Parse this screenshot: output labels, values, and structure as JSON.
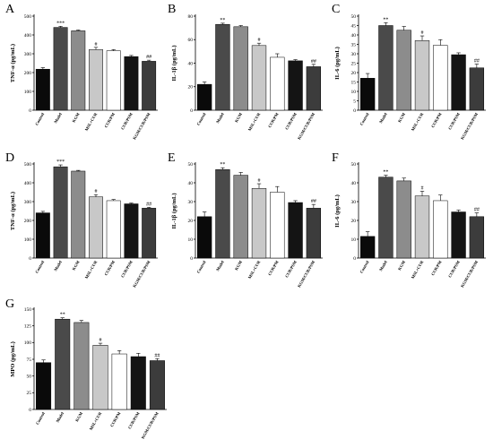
{
  "colors": [
    "#0a0a0a",
    "#4a4a4a",
    "#8c8c8c",
    "#c8c8c8",
    "#ffffff",
    "#141414",
    "#3c3c3c"
  ],
  "chart_data": [
    {
      "type": "bar",
      "panel": "A",
      "ylabel": "TNF-α (pg/mL)",
      "ylim": [
        0,
        500
      ],
      "yticks": [
        0,
        100,
        200,
        300,
        400,
        500
      ],
      "categories": [
        "Control",
        "Model",
        "KGM",
        "MSL+CUR",
        "CUR/PM",
        "CUR/PSM",
        "KGM/CUR/PSM"
      ],
      "values": [
        218,
        440,
        422,
        322,
        316,
        285,
        260
      ],
      "errors": [
        8,
        6,
        4,
        12,
        6,
        6,
        6
      ],
      "annotations": [
        "",
        "***",
        "",
        "#",
        "",
        "",
        "##"
      ]
    },
    {
      "type": "bar",
      "panel": "B",
      "ylabel": "IL-1β (pg/mL)",
      "ylim": [
        0,
        80
      ],
      "yticks": [
        0,
        20,
        40,
        60,
        80
      ],
      "categories": [
        "Control",
        "Model",
        "KGM",
        "MSL+CUR",
        "CUR/PM",
        "CUR/PSM",
        "KGM/CUR/PSM"
      ],
      "values": [
        22,
        73,
        71,
        55,
        45,
        42,
        37
      ],
      "errors": [
        2,
        1,
        1,
        2,
        3,
        1,
        2
      ],
      "annotations": [
        "",
        "**",
        "",
        "#",
        "",
        "",
        "##"
      ]
    },
    {
      "type": "bar",
      "panel": "C",
      "ylabel": "IL-6 (pg/mL)",
      "ylim": [
        0,
        50
      ],
      "yticks": [
        0,
        5,
        10,
        15,
        20,
        25,
        30,
        35,
        40,
        45,
        50
      ],
      "categories": [
        "Control",
        "Model",
        "KGM",
        "MSL+CUR",
        "CUR/PM",
        "CUR/PSM",
        "KGM/CUR/PSM"
      ],
      "values": [
        17,
        45,
        42.5,
        37,
        34.5,
        29.5,
        22.5
      ],
      "errors": [
        2.5,
        1.5,
        2,
        2.5,
        3,
        1,
        2
      ],
      "annotations": [
        "",
        "**",
        "",
        "#",
        "",
        "",
        "##"
      ]
    },
    {
      "type": "bar",
      "panel": "D",
      "ylabel": "TNF-α (pg/mL)",
      "ylim": [
        0,
        500
      ],
      "yticks": [
        0,
        100,
        200,
        300,
        400,
        500
      ],
      "categories": [
        "Control",
        "Model",
        "KGM",
        "MSL+CUR",
        "CUR/PM",
        "CUR/PSM",
        "KGM/CUR/PSM"
      ],
      "values": [
        240,
        485,
        462,
        325,
        305,
        288,
        265
      ],
      "errors": [
        8,
        10,
        4,
        12,
        6,
        4,
        5
      ],
      "annotations": [
        "",
        "***",
        "",
        "#",
        "",
        "",
        "##"
      ]
    },
    {
      "type": "bar",
      "panel": "E",
      "ylabel": "IL-1β (pg/mL)",
      "ylim": [
        0,
        50
      ],
      "yticks": [
        0,
        10,
        20,
        30,
        40,
        50
      ],
      "categories": [
        "Control",
        "Model",
        "KGM",
        "MSL+CUR",
        "CUR/PM",
        "CUR/PSM",
        "KGM/CUR/PSM"
      ],
      "values": [
        22,
        47,
        44,
        37,
        35,
        29.5,
        26.5
      ],
      "errors": [
        2.5,
        1,
        1.5,
        2.5,
        3,
        1,
        2
      ],
      "annotations": [
        "",
        "**",
        "",
        "#",
        "",
        "",
        "##"
      ]
    },
    {
      "type": "bar",
      "panel": "F",
      "ylabel": "IL-6 (pg/mL)",
      "ylim": [
        0,
        50
      ],
      "yticks": [
        0,
        10,
        20,
        30,
        40,
        50
      ],
      "categories": [
        "Control",
        "Model",
        "KGM",
        "MSL+CUR",
        "CUR/PM",
        "CUR/PSM",
        "KGM/CUR/PSM"
      ],
      "values": [
        11.5,
        43,
        41,
        33,
        30.5,
        24.5,
        22
      ],
      "errors": [
        2.5,
        1,
        1.5,
        2.5,
        3,
        1,
        2
      ],
      "annotations": [
        "",
        "**",
        "",
        "#",
        "",
        "",
        "##"
      ]
    },
    {
      "type": "bar",
      "panel": "G",
      "ylabel": "MPO (pg/mL)",
      "ylim": [
        0,
        150
      ],
      "yticks": [
        0,
        25,
        50,
        75,
        100,
        125,
        150
      ],
      "categories": [
        "Control",
        "Model",
        "KGM",
        "MSL+CUR",
        "CUR/PM",
        "CUR/PSM",
        "KGM/CUR/PSM"
      ],
      "values": [
        70,
        135,
        130,
        96,
        83,
        79,
        73
      ],
      "errors": [
        4,
        2,
        3,
        3,
        5,
        5,
        3
      ],
      "annotations": [
        "",
        "**",
        "",
        "#",
        "",
        "",
        "##"
      ]
    }
  ]
}
